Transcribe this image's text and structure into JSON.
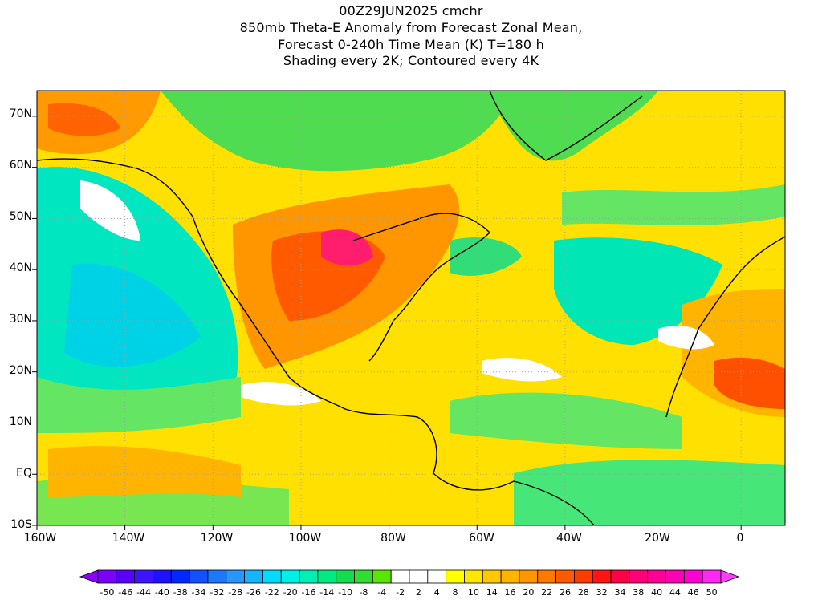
{
  "title": {
    "line1": "00Z29JUN2025 cmchr",
    "line2": "850mb Theta-E Anomaly from Forecast Zonal Mean,",
    "line3": "Forecast 0-240h Time Mean (K) T=180 h",
    "line4": "Shading every 2K; Contoured every 4K"
  },
  "axes": {
    "lat_labels": [
      "70N",
      "60N",
      "50N",
      "40N",
      "30N",
      "20N",
      "10N",
      "EQ",
      "10S"
    ],
    "lon_labels": [
      "160W",
      "140W",
      "120W",
      "100W",
      "80W",
      "60W",
      "40W",
      "20W",
      "0"
    ],
    "lat_range": [
      -10,
      75
    ],
    "lon_range": [
      -160,
      10
    ],
    "grid": "dotted gray"
  },
  "colorbar": {
    "labels": [
      "-50",
      "-46",
      "-44",
      "-40",
      "-38",
      "-34",
      "-32",
      "-28",
      "-26",
      "-22",
      "-20",
      "-16",
      "-14",
      "-10",
      "-8",
      "-4",
      "-2",
      "2",
      "4",
      "8",
      "10",
      "14",
      "16",
      "20",
      "22",
      "26",
      "28",
      "32",
      "34",
      "38",
      "40",
      "44",
      "46",
      "50"
    ],
    "colors": [
      "#7a00ff",
      "#5a00ff",
      "#3c14ff",
      "#1c14ff",
      "#0028ff",
      "#1450ff",
      "#1e78ff",
      "#2896ff",
      "#14b4ff",
      "#00dcff",
      "#00f0e6",
      "#00f0b4",
      "#00eb82",
      "#14dc50",
      "#32dc32",
      "#5ae600",
      "#ffffff",
      "#ffffff",
      "#ffffff",
      "#ffff00",
      "#ffe600",
      "#ffc800",
      "#ffb400",
      "#ff9600",
      "#ff7800",
      "#ff5a00",
      "#ff3c00",
      "#ff1414",
      "#ff0046",
      "#ff0078",
      "#ff0096",
      "#ff00b4",
      "#ff00d2",
      "#ff28f0"
    ]
  },
  "colors": {
    "negative_strong": "#00e6c8",
    "negative_medium": "#64e664",
    "positive_weak": "#ffff32",
    "positive_medium": "#ffb400",
    "positive_strong": "#ff6400",
    "positive_peak": "#ff1e6e"
  }
}
